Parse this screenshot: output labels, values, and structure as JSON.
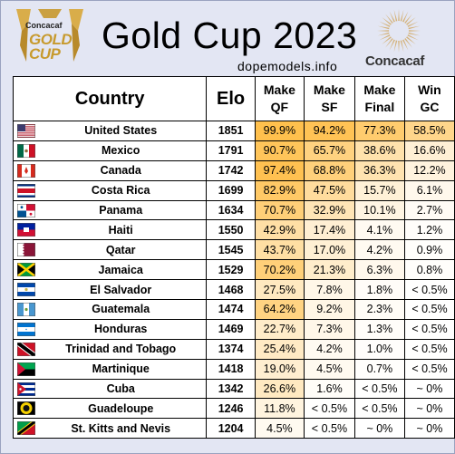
{
  "header": {
    "title": "Gold Cup 2023",
    "website": "dopemodels.info",
    "logo_left": {
      "brand": "Concacaf",
      "line1": "GOLD",
      "line2": "CUP"
    },
    "logo_right": {
      "word": "Concacaf"
    }
  },
  "table": {
    "columns": [
      "Country",
      "Elo",
      "Make QF",
      "Make SF",
      "Make Final",
      "Win GC"
    ],
    "column_lines": [
      [
        "Country"
      ],
      [
        "Elo"
      ],
      [
        "Make",
        "QF"
      ],
      [
        "Make",
        "SF"
      ],
      [
        "Make",
        "Final"
      ],
      [
        "Win",
        "GC"
      ]
    ],
    "rows": [
      {
        "country": "United States",
        "flag": "usa-flag",
        "elo": "1851",
        "qf": "99.9%",
        "sf": "94.2%",
        "final": "77.3%",
        "win": "58.5%",
        "v": [
          99.9,
          94.2,
          77.3,
          58.5
        ]
      },
      {
        "country": "Mexico",
        "flag": "mexico-flag",
        "elo": "1791",
        "qf": "90.7%",
        "sf": "65.7%",
        "final": "38.6%",
        "win": "16.6%",
        "v": [
          90.7,
          65.7,
          38.6,
          16.6
        ]
      },
      {
        "country": "Canada",
        "flag": "canada-flag",
        "elo": "1742",
        "qf": "97.4%",
        "sf": "68.8%",
        "final": "36.3%",
        "win": "12.2%",
        "v": [
          97.4,
          68.8,
          36.3,
          12.2
        ]
      },
      {
        "country": "Costa Rica",
        "flag": "costa-rica-flag",
        "elo": "1699",
        "qf": "82.9%",
        "sf": "47.5%",
        "final": "15.7%",
        "win": "6.1%",
        "v": [
          82.9,
          47.5,
          15.7,
          6.1
        ]
      },
      {
        "country": "Panama",
        "flag": "panama-flag",
        "elo": "1634",
        "qf": "70.7%",
        "sf": "32.9%",
        "final": "10.1%",
        "win": "2.7%",
        "v": [
          70.7,
          32.9,
          10.1,
          2.7
        ]
      },
      {
        "country": "Haiti",
        "flag": "haiti-flag",
        "elo": "1550",
        "qf": "42.9%",
        "sf": "17.4%",
        "final": "4.1%",
        "win": "1.2%",
        "v": [
          42.9,
          17.4,
          4.1,
          1.2
        ]
      },
      {
        "country": "Qatar",
        "flag": "qatar-flag",
        "elo": "1545",
        "qf": "43.7%",
        "sf": "17.0%",
        "final": "4.2%",
        "win": "0.9%",
        "v": [
          43.7,
          17.0,
          4.2,
          0.9
        ]
      },
      {
        "country": "Jamaica",
        "flag": "jamaica-flag",
        "elo": "1529",
        "qf": "70.2%",
        "sf": "21.3%",
        "final": "6.3%",
        "win": "0.8%",
        "v": [
          70.2,
          21.3,
          6.3,
          0.8
        ]
      },
      {
        "country": "El Salvador",
        "flag": "el-salvador-flag",
        "elo": "1468",
        "qf": "27.5%",
        "sf": "7.8%",
        "final": "1.8%",
        "win": "< 0.5%",
        "v": [
          27.5,
          7.8,
          1.8,
          0.2
        ]
      },
      {
        "country": "Guatemala",
        "flag": "guatemala-flag",
        "elo": "1474",
        "qf": "64.2%",
        "sf": "9.2%",
        "final": "2.3%",
        "win": "< 0.5%",
        "v": [
          64.2,
          9.2,
          2.3,
          0.2
        ]
      },
      {
        "country": "Honduras",
        "flag": "honduras-flag",
        "elo": "1469",
        "qf": "22.7%",
        "sf": "7.3%",
        "final": "1.3%",
        "win": "< 0.5%",
        "v": [
          22.7,
          7.3,
          1.3,
          0.2
        ]
      },
      {
        "country": "Trinidad and Tobago",
        "flag": "trinidad-flag",
        "elo": "1374",
        "qf": "25.4%",
        "sf": "4.2%",
        "final": "1.0%",
        "win": "< 0.5%",
        "v": [
          25.4,
          4.2,
          1.0,
          0.2
        ]
      },
      {
        "country": "Martinique",
        "flag": "martinique-flag",
        "elo": "1418",
        "qf": "19.0%",
        "sf": "4.5%",
        "final": "0.7%",
        "win": "< 0.5%",
        "v": [
          19.0,
          4.5,
          0.7,
          0.2
        ]
      },
      {
        "country": "Cuba",
        "flag": "cuba-flag",
        "elo": "1342",
        "qf": "26.6%",
        "sf": "1.6%",
        "final": "< 0.5%",
        "win": "~ 0%",
        "v": [
          26.6,
          1.6,
          0.2,
          0.0
        ]
      },
      {
        "country": "Guadeloupe",
        "flag": "guadeloupe-flag",
        "elo": "1246",
        "qf": "11.8%",
        "sf": "< 0.5%",
        "final": "< 0.5%",
        "win": "~ 0%",
        "v": [
          11.8,
          0.2,
          0.2,
          0.0
        ]
      },
      {
        "country": "St. Kitts and Nevis",
        "flag": "st-kitts-flag",
        "elo": "1204",
        "qf": "4.5%",
        "sf": "< 0.5%",
        "final": "~ 0%",
        "win": "~ 0%",
        "v": [
          4.5,
          0.2,
          0.0,
          0.0
        ]
      }
    ]
  },
  "colors": {
    "heat_high": "#ffc04d",
    "heat_low": "#ffffff",
    "background": "#e3e6f3",
    "gold": "#c79a2e"
  },
  "chart_data": {
    "type": "table",
    "title": "Gold Cup 2023",
    "columns": [
      "Country",
      "Elo",
      "Make QF",
      "Make SF",
      "Make Final",
      "Win GC"
    ],
    "rows": [
      [
        "United States",
        1851,
        "99.9%",
        "94.2%",
        "77.3%",
        "58.5%"
      ],
      [
        "Mexico",
        1791,
        "90.7%",
        "65.7%",
        "38.6%",
        "16.6%"
      ],
      [
        "Canada",
        1742,
        "97.4%",
        "68.8%",
        "36.3%",
        "12.2%"
      ],
      [
        "Costa Rica",
        1699,
        "82.9%",
        "47.5%",
        "15.7%",
        "6.1%"
      ],
      [
        "Panama",
        1634,
        "70.7%",
        "32.9%",
        "10.1%",
        "2.7%"
      ],
      [
        "Haiti",
        1550,
        "42.9%",
        "17.4%",
        "4.1%",
        "1.2%"
      ],
      [
        "Qatar",
        1545,
        "43.7%",
        "17.0%",
        "4.2%",
        "0.9%"
      ],
      [
        "Jamaica",
        1529,
        "70.2%",
        "21.3%",
        "6.3%",
        "0.8%"
      ],
      [
        "El Salvador",
        1468,
        "27.5%",
        "7.8%",
        "1.8%",
        "< 0.5%"
      ],
      [
        "Guatemala",
        1474,
        "64.2%",
        "9.2%",
        "2.3%",
        "< 0.5%"
      ],
      [
        "Honduras",
        1469,
        "22.7%",
        "7.3%",
        "1.3%",
        "< 0.5%"
      ],
      [
        "Trinidad and Tobago",
        1374,
        "25.4%",
        "4.2%",
        "1.0%",
        "< 0.5%"
      ],
      [
        "Martinique",
        1418,
        "19.0%",
        "4.5%",
        "0.7%",
        "< 0.5%"
      ],
      [
        "Cuba",
        1342,
        "26.6%",
        "1.6%",
        "< 0.5%",
        "~ 0%"
      ],
      [
        "Guadeloupe",
        1246,
        "11.8%",
        "< 0.5%",
        "< 0.5%",
        "~ 0%"
      ],
      [
        "St. Kitts and Nevis",
        1204,
        "4.5%",
        "< 0.5%",
        "~ 0%",
        "~ 0%"
      ]
    ]
  }
}
